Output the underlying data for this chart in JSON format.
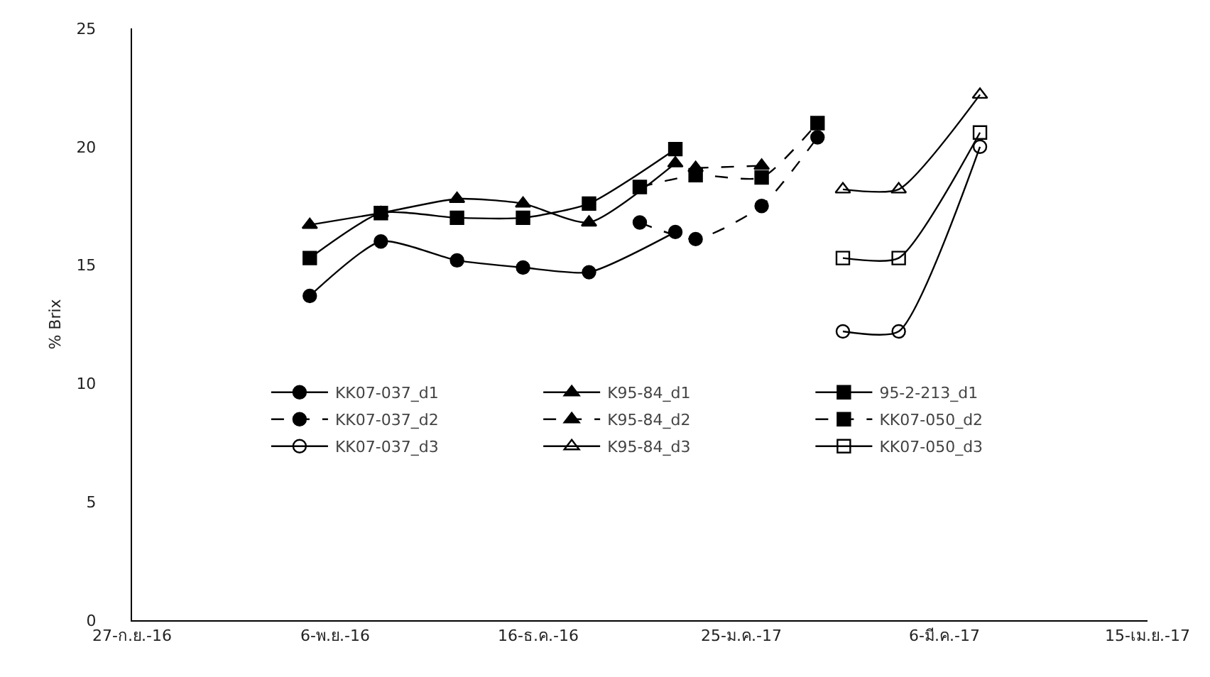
{
  "chart_data": {
    "type": "line",
    "ylabel": "% Brix",
    "xlim": [
      "2016-09-27",
      "2017-04-15"
    ],
    "xticks": [
      {
        "value": "2016-09-27",
        "label": "27-ก.ย.-16"
      },
      {
        "value": "2016-11-06",
        "label": "6-พ.ย.-16"
      },
      {
        "value": "2016-12-16",
        "label": "16-ธ.ค.-16"
      },
      {
        "value": "2017-01-25",
        "label": "25-ม.ค.-17"
      },
      {
        "value": "2017-03-06",
        "label": "6-มี.ค.-17"
      },
      {
        "value": "2017-04-15",
        "label": "15-เม.ย.-17"
      }
    ],
    "ylim": [
      0,
      25
    ],
    "yticks": [
      0,
      5,
      10,
      15,
      20,
      25
    ],
    "legend": "bottom",
    "series": [
      {
        "name": "KK07-037_d1",
        "color": "#000000",
        "marker": "circle",
        "line_style": "solid",
        "x": [
          "2016-11-01",
          "2016-11-15",
          "2016-11-30",
          "2016-12-13",
          "2016-12-26",
          "2017-01-12"
        ],
        "values": [
          13.7,
          16.0,
          15.2,
          14.9,
          14.7,
          16.4
        ]
      },
      {
        "name": "K95-84_d1",
        "color": "#000000",
        "marker": "triangle",
        "line_style": "solid",
        "x": [
          "2016-11-01",
          "2016-11-15",
          "2016-11-30",
          "2016-12-13",
          "2016-12-26",
          "2017-01-12"
        ],
        "values": [
          16.7,
          17.2,
          17.8,
          17.6,
          16.8,
          19.3
        ]
      },
      {
        "name": "95-2-213_d1",
        "color": "#000000",
        "marker": "square",
        "line_style": "solid",
        "x": [
          "2016-11-01",
          "2016-11-15",
          "2016-11-30",
          "2016-12-13",
          "2016-12-26",
          "2017-01-12"
        ],
        "values": [
          15.3,
          17.2,
          17.0,
          17.0,
          17.6,
          19.9
        ]
      },
      {
        "name": "KK07-037_d2",
        "color": "#000000",
        "marker": "circle",
        "line_style": "dashed",
        "x": [
          "2017-01-05",
          "2017-01-16",
          "2017-01-29",
          "2017-02-09"
        ],
        "values": [
          16.8,
          16.1,
          17.5,
          20.4
        ]
      },
      {
        "name": "K95-84_d2",
        "color": "#000000",
        "marker": "triangle",
        "line_style": "dashed",
        "x": [
          "2017-01-16",
          "2017-01-29"
        ],
        "values": [
          19.1,
          19.2
        ]
      },
      {
        "name": "KK07-050_d2",
        "color": "#000000",
        "marker": "square",
        "line_style": "dashed",
        "x": [
          "2017-01-05",
          "2017-01-16",
          "2017-01-29",
          "2017-02-09"
        ],
        "values": [
          18.3,
          18.8,
          18.7,
          21.0
        ]
      },
      {
        "name": "KK07-037_d3",
        "color": "#000000",
        "marker": "circle-open",
        "line_style": "solid",
        "x": [
          "2017-02-14",
          "2017-02-25",
          "2017-03-13"
        ],
        "values": [
          12.2,
          12.2,
          20.0
        ]
      },
      {
        "name": "K95-84_d3",
        "color": "#000000",
        "marker": "triangle-open",
        "line_style": "solid",
        "x": [
          "2017-02-14",
          "2017-02-25",
          "2017-03-13"
        ],
        "values": [
          18.2,
          18.2,
          22.2
        ]
      },
      {
        "name": "KK07-050_d3",
        "color": "#000000",
        "marker": "square-open",
        "line_style": "solid",
        "x": [
          "2017-02-14",
          "2017-02-25",
          "2017-03-13"
        ],
        "values": [
          15.3,
          15.3,
          20.6
        ]
      }
    ]
  }
}
